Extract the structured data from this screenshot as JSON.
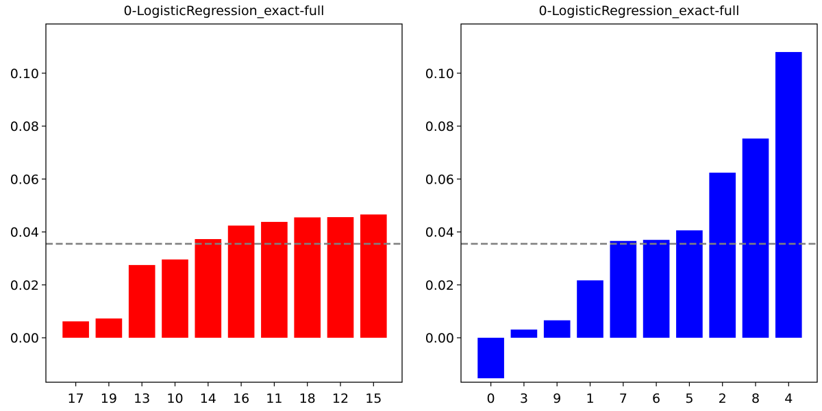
{
  "chart_data": [
    {
      "type": "bar",
      "title": "0-LogisticRegression_exact-full",
      "categories": [
        "17",
        "19",
        "13",
        "10",
        "14",
        "16",
        "11",
        "18",
        "12",
        "15"
      ],
      "values": [
        0.0062,
        0.0073,
        0.0275,
        0.0296,
        0.0373,
        0.0424,
        0.0438,
        0.0455,
        0.0456,
        0.0466
      ],
      "bar_color": "#ff0000",
      "reference_line": {
        "value": 0.0355,
        "style": "dashed",
        "color": "#808080"
      },
      "ylim": [
        -0.0168,
        0.1186
      ],
      "yticks": [
        0.0,
        0.02,
        0.04,
        0.06,
        0.08,
        0.1
      ],
      "ytick_labels": [
        "0.00",
        "0.02",
        "0.04",
        "0.06",
        "0.08",
        "0.10"
      ],
      "xlabel": "",
      "ylabel": "",
      "grid": false
    },
    {
      "type": "bar",
      "title": "0-LogisticRegression_exact-full",
      "categories": [
        "0",
        "3",
        "9",
        "1",
        "7",
        "6",
        "5",
        "2",
        "8",
        "4"
      ],
      "values": [
        -0.0153,
        0.0031,
        0.0066,
        0.0217,
        0.0366,
        0.037,
        0.0406,
        0.0624,
        0.0753,
        0.108
      ],
      "bar_color": "#0000ff",
      "reference_line": {
        "value": 0.0355,
        "style": "dashed",
        "color": "#808080"
      },
      "ylim": [
        -0.0168,
        0.1186
      ],
      "yticks": [
        0.0,
        0.02,
        0.04,
        0.06,
        0.08,
        0.1
      ],
      "ytick_labels": [
        "0.00",
        "0.02",
        "0.04",
        "0.06",
        "0.08",
        "0.10"
      ],
      "xlabel": "",
      "ylabel": "",
      "grid": false
    }
  ]
}
